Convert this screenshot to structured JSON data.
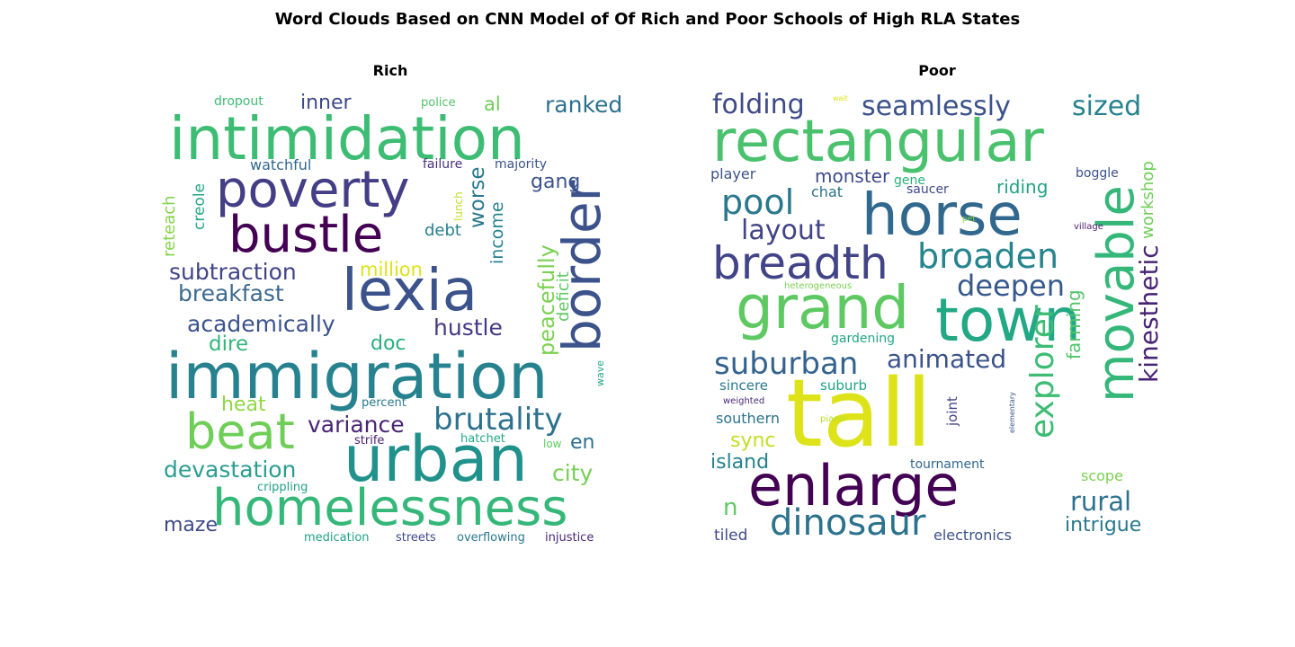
{
  "title": "Word Clouds Based on CNN Model of Of Rich and Poor Schools of High RLA States",
  "panels": {
    "rich": {
      "title": "Rich",
      "words": [
        {
          "text": "intimidation",
          "color": "#3dbc74"
        },
        {
          "text": "poverty",
          "color": "#433e85"
        },
        {
          "text": "bustle",
          "color": "#440154"
        },
        {
          "text": "lexia",
          "color": "#3b528b"
        },
        {
          "text": "border",
          "color": "#3b528b"
        },
        {
          "text": "immigration",
          "color": "#26828e"
        },
        {
          "text": "urban",
          "color": "#21918c"
        },
        {
          "text": "beat",
          "color": "#6ece58"
        },
        {
          "text": "homelessness",
          "color": "#35b779"
        },
        {
          "text": "brutality",
          "color": "#2c728e"
        },
        {
          "text": "devastation",
          "color": "#2a9d8f"
        },
        {
          "text": "subtraction",
          "color": "#414487"
        },
        {
          "text": "breakfast",
          "color": "#3e6a8e"
        },
        {
          "text": "academically",
          "color": "#3b528b"
        },
        {
          "text": "variance",
          "color": "#482475"
        },
        {
          "text": "hustle",
          "color": "#443983"
        },
        {
          "text": "peacefully",
          "color": "#7ad151"
        },
        {
          "text": "ranked",
          "color": "#2c728e"
        },
        {
          "text": "inner",
          "color": "#3e4a89"
        },
        {
          "text": "watchful",
          "color": "#31688e"
        },
        {
          "text": "reteach",
          "color": "#84d44b"
        },
        {
          "text": "creole",
          "color": "#26a784"
        },
        {
          "text": "gang",
          "color": "#3b528b"
        },
        {
          "text": "worse",
          "color": "#2a788e"
        },
        {
          "text": "income",
          "color": "#25848e"
        },
        {
          "text": "deficit",
          "color": "#5ec962"
        },
        {
          "text": "debt",
          "color": "#277f8e"
        },
        {
          "text": "million",
          "color": "#dde318"
        },
        {
          "text": "dire",
          "color": "#32b67a"
        },
        {
          "text": "doc",
          "color": "#29af7f"
        },
        {
          "text": "heat",
          "color": "#90d743"
        },
        {
          "text": "city",
          "color": "#75d054"
        },
        {
          "text": "en",
          "color": "#2d708e"
        },
        {
          "text": "maze",
          "color": "#3e4a89"
        },
        {
          "text": "dropout",
          "color": "#3dbc74"
        },
        {
          "text": "police",
          "color": "#52c569"
        },
        {
          "text": "al",
          "color": "#6ece58"
        },
        {
          "text": "failure",
          "color": "#46327e"
        },
        {
          "text": "majority",
          "color": "#3b528b"
        },
        {
          "text": "lunch",
          "color": "#c2df23"
        },
        {
          "text": "wave",
          "color": "#22a785"
        },
        {
          "text": "percent",
          "color": "#2a788e"
        },
        {
          "text": "strife",
          "color": "#481f70"
        },
        {
          "text": "hatchet",
          "color": "#22a884"
        },
        {
          "text": "low",
          "color": "#5ec962"
        },
        {
          "text": "crippling",
          "color": "#1fa187"
        },
        {
          "text": "medication",
          "color": "#20a386"
        },
        {
          "text": "streets",
          "color": "#3e4989"
        },
        {
          "text": "overflowing",
          "color": "#2a788e"
        },
        {
          "text": "injustice",
          "color": "#482878"
        }
      ]
    },
    "poor": {
      "title": "Poor",
      "words": [
        {
          "text": "rectangular",
          "color": "#4ac16d"
        },
        {
          "text": "horse",
          "color": "#31688e"
        },
        {
          "text": "breadth",
          "color": "#414487"
        },
        {
          "text": "grand",
          "color": "#5ec962"
        },
        {
          "text": "town",
          "color": "#22a884"
        },
        {
          "text": "movable",
          "color": "#35b779"
        },
        {
          "text": "tall",
          "color": "#dde318"
        },
        {
          "text": "enlarge",
          "color": "#440154"
        },
        {
          "text": "dinosaur",
          "color": "#2c728e"
        },
        {
          "text": "folding",
          "color": "#3e4a89"
        },
        {
          "text": "seamlessly",
          "color": "#3b528b"
        },
        {
          "text": "sized",
          "color": "#26828e"
        },
        {
          "text": "pool",
          "color": "#2a788e"
        },
        {
          "text": "layout",
          "color": "#414487"
        },
        {
          "text": "broaden",
          "color": "#25848e"
        },
        {
          "text": "deepen",
          "color": "#38598c"
        },
        {
          "text": "suburban",
          "color": "#33638d"
        },
        {
          "text": "animated",
          "color": "#3b528b"
        },
        {
          "text": "explorer",
          "color": "#3dbc74"
        },
        {
          "text": "kinesthetic",
          "color": "#482475"
        },
        {
          "text": "workshop",
          "color": "#6ece58"
        },
        {
          "text": "farming",
          "color": "#52c569"
        },
        {
          "text": "rural",
          "color": "#2c728e"
        },
        {
          "text": "intrigue",
          "color": "#2a788e"
        },
        {
          "text": "scope",
          "color": "#7ad151"
        },
        {
          "text": "monster",
          "color": "#3e4a89"
        },
        {
          "text": "riding",
          "color": "#20a386"
        },
        {
          "text": "player",
          "color": "#3b528b"
        },
        {
          "text": "chat",
          "color": "#2c728e"
        },
        {
          "text": "gene",
          "color": "#29af7f"
        },
        {
          "text": "saucer",
          "color": "#3e4a89"
        },
        {
          "text": "boggle",
          "color": "#3b528b"
        },
        {
          "text": "gardening",
          "color": "#22a884"
        },
        {
          "text": "sincere",
          "color": "#2a788e"
        },
        {
          "text": "suburb",
          "color": "#20a386"
        },
        {
          "text": "southern",
          "color": "#2c728e"
        },
        {
          "text": "sync",
          "color": "#c2df23"
        },
        {
          "text": "island",
          "color": "#26828e"
        },
        {
          "text": "n",
          "color": "#5ec962"
        },
        {
          "text": "tiled",
          "color": "#3e4a89"
        },
        {
          "text": "electronics",
          "color": "#3b528b"
        },
        {
          "text": "tournament",
          "color": "#31688e"
        },
        {
          "text": "joint",
          "color": "#414487"
        },
        {
          "text": "weighted",
          "color": "#482878"
        },
        {
          "text": "piano",
          "color": "#b5de2b"
        },
        {
          "text": "heterogeneous",
          "color": "#7ad151"
        },
        {
          "text": "elementary",
          "color": "#3b528b"
        },
        {
          "text": "village",
          "color": "#481a6c"
        },
        {
          "text": "pet",
          "color": "#86d549"
        },
        {
          "text": "wait",
          "color": "#dde318"
        }
      ]
    }
  }
}
